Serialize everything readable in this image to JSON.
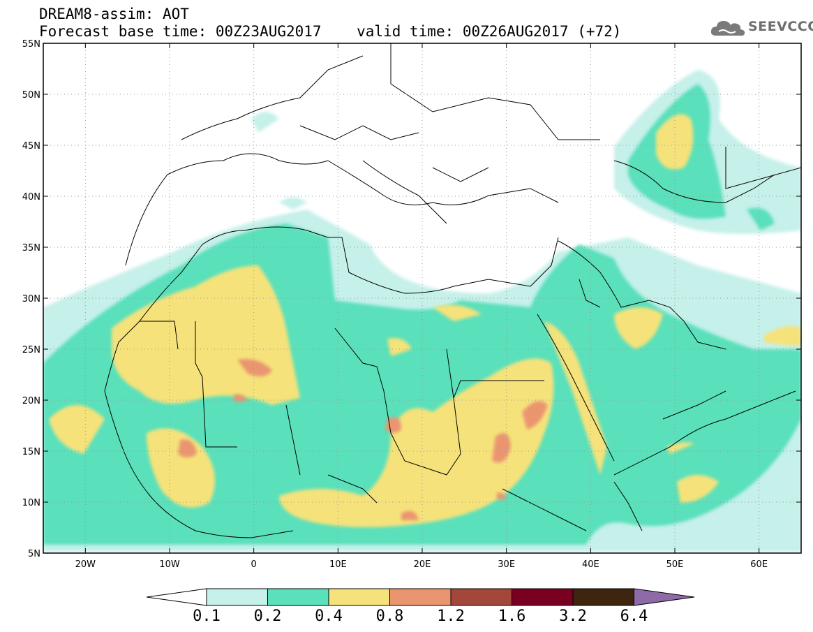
{
  "header": {
    "title_line1": "DREAM8-assim: AOT",
    "title_line2": "Forecast base time: 00Z23AUG2017    valid time: 00Z26AUG2017 (+72)",
    "logo_text": "SEEVCCC",
    "logo_icon": "cloud-icon"
  },
  "map": {
    "lon_range": [
      -25,
      65
    ],
    "lat_range": [
      5,
      55
    ],
    "lat_ticks": [
      {
        "value": 55,
        "label": "55N"
      },
      {
        "value": 50,
        "label": "50N"
      },
      {
        "value": 45,
        "label": "45N"
      },
      {
        "value": 40,
        "label": "40N"
      },
      {
        "value": 35,
        "label": "35N"
      },
      {
        "value": 30,
        "label": "30N"
      },
      {
        "value": 25,
        "label": "25N"
      },
      {
        "value": 20,
        "label": "20N"
      },
      {
        "value": 15,
        "label": "15N"
      },
      {
        "value": 10,
        "label": "10N"
      },
      {
        "value": 5,
        "label": "5N"
      }
    ],
    "lon_ticks": [
      {
        "value": -20,
        "label": "20W"
      },
      {
        "value": -10,
        "label": "10W"
      },
      {
        "value": 0,
        "label": "0"
      },
      {
        "value": 10,
        "label": "10E"
      },
      {
        "value": 20,
        "label": "20E"
      },
      {
        "value": 30,
        "label": "30E"
      },
      {
        "value": 40,
        "label": "40E"
      },
      {
        "value": 50,
        "label": "50E"
      },
      {
        "value": 60,
        "label": "60E"
      }
    ],
    "grid": "dotted"
  },
  "colorbar": {
    "levels": [
      "0.1",
      "0.2",
      "0.4",
      "0.8",
      "1.2",
      "1.6",
      "3.2",
      "6.4"
    ],
    "colors": [
      "#ffffff",
      "#c6f0ea",
      "#5ae0bb",
      "#f6e27a",
      "#ea9570",
      "#a2473a",
      "#7a0022",
      "#3d2510",
      "#8e6aa6"
    ]
  }
}
